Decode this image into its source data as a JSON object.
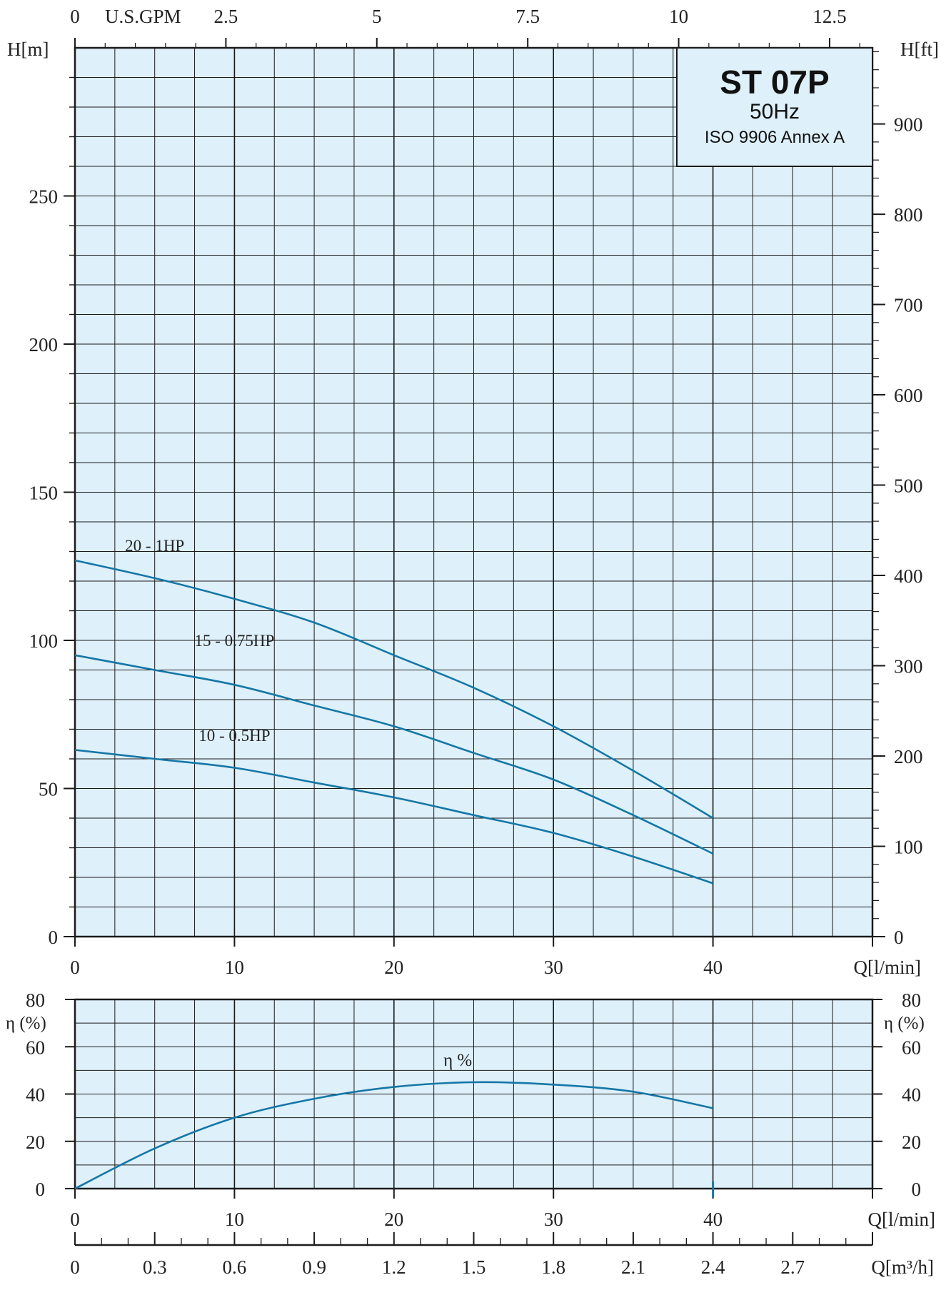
{
  "title_box": {
    "model": "ST 07P",
    "frequency": "50Hz",
    "standard": "ISO 9906 Annex A"
  },
  "colors": {
    "plot_bg": "#def0fa",
    "grid": "#1a1a1a",
    "curve": "#1577a6"
  },
  "chart_data": [
    {
      "type": "line",
      "title": "ST 07P",
      "x_unit_label": "Q[l/min]",
      "y_left_label": "H[m]",
      "y_right_label": "H[ft]",
      "top_axis_label": "U.S.GPM",
      "xlim": [
        0,
        50
      ],
      "ylim": [
        0,
        300
      ],
      "x_ticks": [
        0,
        10,
        20,
        30,
        40
      ],
      "y_ticks": [
        0,
        50,
        100,
        150,
        200,
        250
      ],
      "top_ticks": [
        0,
        2.5,
        5,
        7.5,
        10,
        12.5
      ],
      "top_tick_labels": [
        "0",
        "2.5",
        "5",
        "7.5",
        "10",
        "12.5"
      ],
      "ft_ticks": [
        0,
        100,
        200,
        300,
        400,
        500,
        600,
        700,
        800,
        900
      ],
      "grid": true,
      "series": [
        {
          "name": "20 - 1HP",
          "x": [
            0,
            5,
            10,
            15,
            20,
            25,
            30,
            35,
            40
          ],
          "y": [
            127,
            121,
            114,
            106,
            95,
            84,
            71,
            56,
            40
          ]
        },
        {
          "name": "15 - 0.75HP",
          "x": [
            0,
            5,
            10,
            15,
            20,
            25,
            30,
            35,
            40
          ],
          "y": [
            95,
            90,
            85,
            78,
            71,
            62,
            53,
            41,
            28
          ]
        },
        {
          "name": "10 - 0.5HP",
          "x": [
            0,
            5,
            10,
            15,
            20,
            25,
            30,
            35,
            40
          ],
          "y": [
            63,
            60,
            57,
            52,
            47,
            41,
            35,
            27,
            18
          ]
        }
      ]
    },
    {
      "type": "line",
      "x_unit_label": "Q[l/min]",
      "y_label": "η (%)",
      "xlim": [
        0,
        50
      ],
      "ylim": [
        0,
        80
      ],
      "x_ticks": [
        0,
        10,
        20,
        30,
        40
      ],
      "y_ticks": [
        0,
        20,
        40,
        60,
        80
      ],
      "grid": true,
      "series": [
        {
          "name": "η %",
          "x": [
            0,
            5,
            10,
            15,
            20,
            25,
            30,
            35,
            40
          ],
          "y": [
            0,
            17,
            30,
            38,
            43,
            45,
            44,
            41,
            34
          ]
        }
      ]
    },
    {
      "type": "axis",
      "x_unit_label": "Q[m³/h]",
      "xlim": [
        0,
        3
      ],
      "x_ticks": [
        0,
        0.3,
        0.6,
        0.9,
        1.2,
        1.5,
        1.8,
        2.1,
        2.4,
        2.7
      ],
      "x_tick_labels": [
        "0",
        "0.3",
        "0.6",
        "0.9",
        "1.2",
        "1.5",
        "1.8",
        "2.1",
        "2.4",
        "2.7"
      ]
    }
  ]
}
